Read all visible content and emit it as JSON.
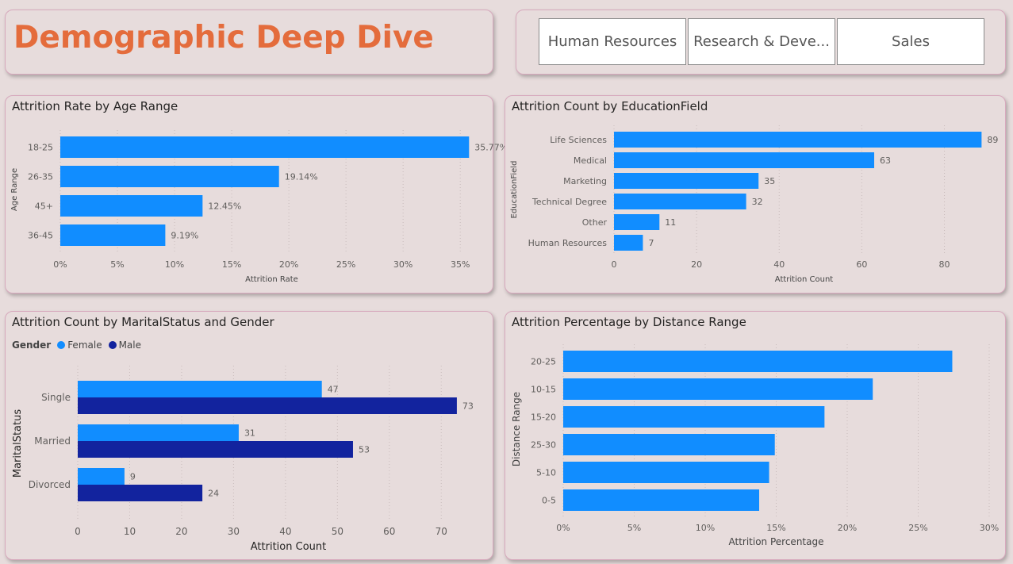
{
  "header": {
    "title": "Demographic Deep Dive"
  },
  "slicer": {
    "items": [
      "Human Resources",
      "Research & Deve...",
      "Sales"
    ]
  },
  "colors": {
    "female": "#118dff",
    "male": "#12239e",
    "bar": "#118dff",
    "title": "#e46c3c"
  },
  "chart_data": [
    {
      "type": "bar",
      "title": "Attrition Rate by Age Range",
      "categories": [
        "18-25",
        "26-35",
        "45+",
        "36-45"
      ],
      "values": [
        35.77,
        19.14,
        12.45,
        9.19
      ],
      "labels": [
        "35.77%",
        "19.14%",
        "12.45%",
        "9.19%"
      ],
      "xlabel": "Attrition Rate",
      "ylabel": "Age Range",
      "xlim": [
        0,
        37
      ],
      "ticks": [
        0,
        5,
        10,
        15,
        20,
        25,
        30,
        35
      ],
      "tick_labels": [
        "0%",
        "5%",
        "10%",
        "15%",
        "20%",
        "25%",
        "30%",
        "35%"
      ]
    },
    {
      "type": "bar",
      "title": "Attrition Count by EducationField",
      "categories": [
        "Life Sciences",
        "Medical",
        "Marketing",
        "Technical Degree",
        "Other",
        "Human Resources"
      ],
      "values": [
        89,
        63,
        35,
        32,
        11,
        7
      ],
      "labels": [
        "89",
        "63",
        "35",
        "32",
        "11",
        "7"
      ],
      "xlabel": "Attrition Count",
      "ylabel": "EducationField",
      "xlim": [
        0,
        92
      ],
      "ticks": [
        0,
        20,
        40,
        60,
        80
      ],
      "tick_labels": [
        "0",
        "20",
        "40",
        "60",
        "80"
      ]
    },
    {
      "type": "bar",
      "title": "Attrition Count by MaritalStatus and Gender",
      "legend_title": "Gender",
      "categories": [
        "Single",
        "Married",
        "Divorced"
      ],
      "series": [
        {
          "name": "Female",
          "values": [
            47,
            31,
            9
          ]
        },
        {
          "name": "Male",
          "values": [
            73,
            53,
            24
          ]
        }
      ],
      "xlabel": "Attrition Count",
      "ylabel": "MaritalStatus",
      "xlim": [
        0,
        75
      ],
      "ticks": [
        0,
        10,
        20,
        30,
        40,
        50,
        60,
        70
      ],
      "tick_labels": [
        "0",
        "10",
        "20",
        "30",
        "40",
        "50",
        "60",
        "70"
      ]
    },
    {
      "type": "bar",
      "title": "Attrition Percentage by Distance Range",
      "categories": [
        "20-25",
        "10-15",
        "15-20",
        "25-30",
        "5-10",
        "0-5"
      ],
      "values": [
        27.4,
        21.8,
        18.4,
        14.9,
        14.5,
        13.8
      ],
      "xlabel": "Attrition Percentage",
      "ylabel": "Distance Range",
      "xlim": [
        0,
        30
      ],
      "ticks": [
        0,
        5,
        10,
        15,
        20,
        25,
        30
      ],
      "tick_labels": [
        "0%",
        "5%",
        "10%",
        "15%",
        "20%",
        "25%",
        "30%"
      ]
    }
  ]
}
